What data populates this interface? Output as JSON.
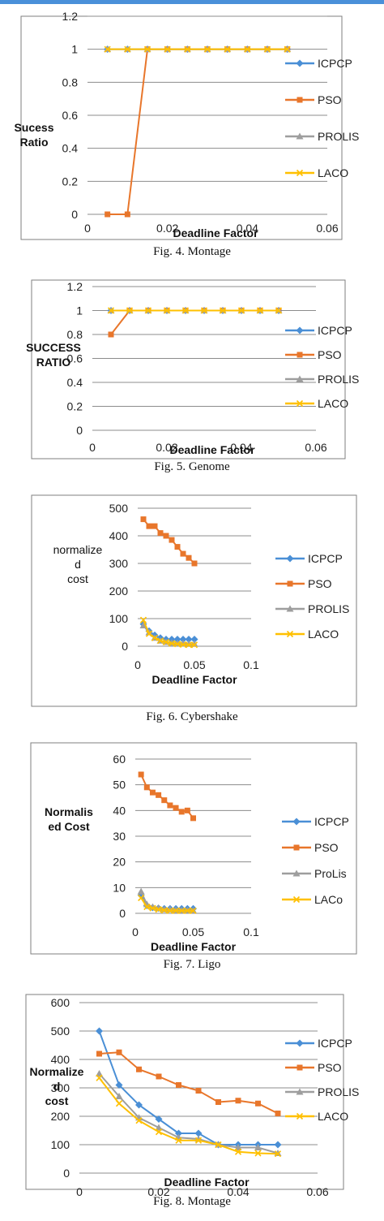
{
  "colors": {
    "ICPCP": "#4a8fd6",
    "PSO": "#e8762b",
    "PROLIS": "#9e9e9e",
    "LACO": "#ffc000",
    "grid": "#8c8c8c",
    "border": "#7f7f7f"
  },
  "chart_data": [
    {
      "type": "line",
      "caption": "Fig. 4.  Montage",
      "ylabel": "Sucess Ratio",
      "xlabel": "Deadline Factor",
      "y_ticks": [
        "0",
        "0.2",
        "0.4",
        "0.6",
        "0.8",
        "1",
        "1.2"
      ],
      "x_ticks": [
        "0",
        "0.02",
        "0.04",
        "0.06"
      ],
      "ylim": [
        0,
        1.2
      ],
      "xlim": [
        0,
        0.06
      ],
      "grid": "horizontal",
      "legend": "right",
      "x": [
        0.005,
        0.01,
        0.015,
        0.02,
        0.025,
        0.03,
        0.035,
        0.04,
        0.045,
        0.05
      ],
      "series": [
        {
          "name": "ICPCP",
          "marker": "diamond",
          "values": [
            1,
            1,
            1,
            1,
            1,
            1,
            1,
            1,
            1,
            1
          ]
        },
        {
          "name": "PSO",
          "marker": "square",
          "values": [
            0,
            0,
            1,
            1,
            1,
            1,
            1,
            1,
            1,
            1
          ]
        },
        {
          "name": "PROLIS",
          "marker": "triangle",
          "values": [
            1,
            1,
            1,
            1,
            1,
            1,
            1,
            1,
            1,
            1
          ]
        },
        {
          "name": "LACO",
          "marker": "x",
          "values": [
            1,
            1,
            1,
            1,
            1,
            1,
            1,
            1,
            1,
            1
          ]
        }
      ]
    },
    {
      "type": "line",
      "caption": "Fig. 5.  Genome",
      "ylabel": "SUCCESS RATIO",
      "xlabel": "Deadline Factor",
      "y_ticks": [
        "0",
        "0.2",
        "0.4",
        "0.6",
        "0.8",
        "1",
        "1.2"
      ],
      "x_ticks": [
        "0",
        "0.02",
        "0.04",
        "0.06"
      ],
      "ylim": [
        0,
        1.2
      ],
      "xlim": [
        0,
        0.06
      ],
      "grid": "horizontal",
      "legend": "right",
      "x": [
        0.005,
        0.01,
        0.015,
        0.02,
        0.025,
        0.03,
        0.035,
        0.04,
        0.045,
        0.05
      ],
      "series": [
        {
          "name": "ICPCP",
          "marker": "diamond",
          "values": [
            1,
            1,
            1,
            1,
            1,
            1,
            1,
            1,
            1,
            1
          ]
        },
        {
          "name": "PSO",
          "marker": "square",
          "values": [
            0.8,
            1,
            1,
            1,
            1,
            1,
            1,
            1,
            1,
            1
          ]
        },
        {
          "name": "PROLIS",
          "marker": "triangle",
          "values": [
            1,
            1,
            1,
            1,
            1,
            1,
            1,
            1,
            1,
            1
          ]
        },
        {
          "name": "LACO",
          "marker": "x",
          "values": [
            1,
            1,
            1,
            1,
            1,
            1,
            1,
            1,
            1,
            1
          ]
        }
      ]
    },
    {
      "type": "line",
      "caption": "Fig. 6.  Cybershake",
      "ylabel": "normalized cost",
      "xlabel": "Deadline Factor",
      "y_ticks": [
        "0",
        "100",
        "200",
        "300",
        "400",
        "500"
      ],
      "x_ticks": [
        "0",
        "0.05",
        "0.1"
      ],
      "ylim": [
        0,
        500
      ],
      "xlim": [
        0,
        0.1
      ],
      "grid": "horizontal",
      "legend": "right",
      "x": [
        0.005,
        0.01,
        0.015,
        0.02,
        0.025,
        0.03,
        0.035,
        0.04,
        0.045,
        0.05
      ],
      "series": [
        {
          "name": "ICPCP",
          "marker": "diamond",
          "values": [
            80,
            55,
            40,
            30,
            25,
            25,
            25,
            25,
            25,
            25
          ]
        },
        {
          "name": "PSO",
          "marker": "square",
          "values": [
            460,
            435,
            435,
            410,
            400,
            385,
            360,
            335,
            320,
            300
          ]
        },
        {
          "name": "PROLIS",
          "marker": "triangle",
          "values": [
            75,
            50,
            30,
            20,
            15,
            12,
            10,
            10,
            8,
            8
          ]
        },
        {
          "name": "LACO",
          "marker": "x",
          "values": [
            95,
            45,
            30,
            20,
            15,
            10,
            8,
            6,
            5,
            5
          ]
        }
      ]
    },
    {
      "type": "line",
      "caption": "Fig. 7. Ligo",
      "ylabel": "Normalised Cost",
      "xlabel": "Deadline Factor",
      "y_ticks": [
        "0",
        "10",
        "20",
        "30",
        "40",
        "50",
        "60"
      ],
      "x_ticks": [
        "0",
        "0.05",
        "0.1"
      ],
      "ylim": [
        0,
        60
      ],
      "xlim": [
        0,
        0.1
      ],
      "grid": "horizontal",
      "legend": "right",
      "x": [
        0.005,
        0.01,
        0.015,
        0.02,
        0.025,
        0.03,
        0.035,
        0.04,
        0.045,
        0.05
      ],
      "series": [
        {
          "name": "ICPCP",
          "marker": "diamond",
          "values": [
            7,
            3,
            2.2,
            2,
            1.8,
            1.8,
            1.8,
            1.8,
            1.8,
            1.8
          ]
        },
        {
          "name": "PSO",
          "marker": "square",
          "values": [
            54,
            49,
            47,
            46,
            44,
            42,
            41,
            39.5,
            40,
            37
          ]
        },
        {
          "name": "ProLis",
          "marker": "triangle",
          "values": [
            8.5,
            3.5,
            2.5,
            2,
            1.5,
            1.5,
            1.3,
            1.2,
            1.2,
            1.1
          ]
        },
        {
          "name": "LACo",
          "marker": "x",
          "values": [
            6,
            2.5,
            2,
            1.5,
            1.2,
            1,
            1,
            1,
            1,
            1
          ]
        }
      ]
    },
    {
      "type": "line",
      "caption": "Fig. 8.  Montage",
      "ylabel": "Normalize d cost",
      "xlabel": "Deadline Factor",
      "y_ticks": [
        "0",
        "100",
        "200",
        "300",
        "400",
        "500",
        "600"
      ],
      "x_ticks": [
        "0",
        "0.02",
        "0.04",
        "0.06"
      ],
      "ylim": [
        0,
        600
      ],
      "xlim": [
        0,
        0.06
      ],
      "grid": "horizontal",
      "legend": "right",
      "x": [
        0.005,
        0.01,
        0.015,
        0.02,
        0.025,
        0.03,
        0.035,
        0.04,
        0.045,
        0.05
      ],
      "series": [
        {
          "name": "ICPCP",
          "marker": "diamond",
          "values": [
            500,
            310,
            240,
            190,
            140,
            140,
            100,
            100,
            100,
            100
          ]
        },
        {
          "name": "PSO",
          "marker": "square",
          "values": [
            420,
            425,
            365,
            340,
            310,
            290,
            250,
            255,
            245,
            210
          ]
        },
        {
          "name": "PROLIS",
          "marker": "triangle",
          "values": [
            350,
            270,
            195,
            160,
            125,
            120,
            100,
            90,
            90,
            70
          ]
        },
        {
          "name": "LACO",
          "marker": "x",
          "values": [
            335,
            245,
            185,
            145,
            115,
            115,
            100,
            75,
            70,
            68
          ]
        }
      ]
    }
  ]
}
